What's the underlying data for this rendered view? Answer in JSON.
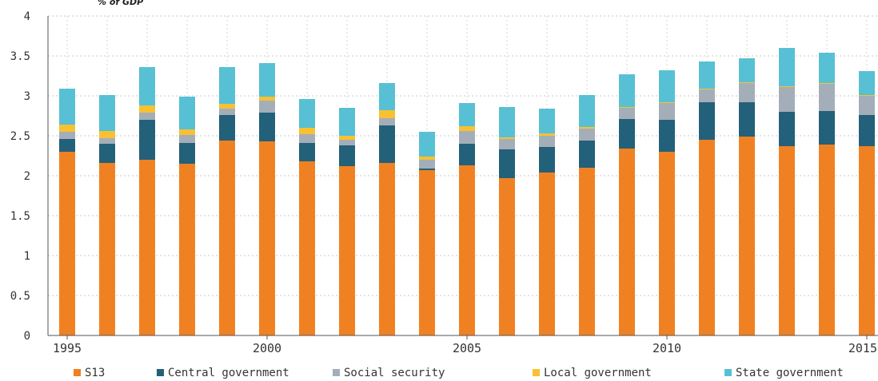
{
  "chart_data": {
    "type": "bar",
    "stacked": true,
    "unit_label": "% of GDP",
    "title": "",
    "xlabel": "",
    "ylabel": "",
    "ylim": [
      0,
      4
    ],
    "yticks": [
      "0",
      "0.5",
      "1",
      "1.5",
      "2",
      "2.5",
      "3",
      "3.5",
      "4"
    ],
    "ytick_values": [
      0,
      0.5,
      1,
      1.5,
      2,
      2.5,
      3,
      3.5,
      4
    ],
    "xticks": [
      "1995",
      "2000",
      "2005",
      "2010",
      "2015"
    ],
    "xtick_years": [
      1995,
      2000,
      2005,
      2010,
      2015
    ],
    "grid": true,
    "legend_position": "bottom",
    "categories": [
      1995,
      1996,
      1997,
      1998,
      1999,
      2000,
      2001,
      2002,
      2003,
      2004,
      2005,
      2006,
      2007,
      2008,
      2009,
      2010,
      2011,
      2012,
      2013,
      2014,
      2015
    ],
    "series": [
      {
        "name": "S13",
        "color": "#f08122",
        "values": [
          2.3,
          2.16,
          2.2,
          2.15,
          2.44,
          2.43,
          2.18,
          2.12,
          2.16,
          2.07,
          2.13,
          1.97,
          2.04,
          2.1,
          2.34,
          2.3,
          2.45,
          2.49,
          2.37,
          2.39,
          2.37
        ]
      },
      {
        "name": "Central government",
        "color": "#23607a",
        "values": [
          0.16,
          0.24,
          0.5,
          0.26,
          0.32,
          0.36,
          0.23,
          0.26,
          0.47,
          0.02,
          0.27,
          0.36,
          0.32,
          0.34,
          0.37,
          0.4,
          0.47,
          0.43,
          0.43,
          0.42,
          0.39
        ]
      },
      {
        "name": "Social security",
        "color": "#a4aeb8",
        "values": [
          0.09,
          0.07,
          0.09,
          0.1,
          0.08,
          0.15,
          0.11,
          0.07,
          0.09,
          0.11,
          0.16,
          0.13,
          0.14,
          0.15,
          0.14,
          0.21,
          0.16,
          0.24,
          0.31,
          0.34,
          0.24
        ]
      },
      {
        "name": "Local government",
        "color": "#f8c132",
        "values": [
          0.09,
          0.09,
          0.09,
          0.07,
          0.06,
          0.05,
          0.08,
          0.05,
          0.1,
          0.04,
          0.06,
          0.02,
          0.03,
          0.02,
          0.01,
          0.01,
          0.01,
          0.01,
          0.01,
          0.01,
          0.01
        ]
      },
      {
        "name": "State government",
        "color": "#57c0d4",
        "values": [
          0.45,
          0.45,
          0.48,
          0.41,
          0.46,
          0.42,
          0.36,
          0.35,
          0.34,
          0.31,
          0.29,
          0.38,
          0.31,
          0.4,
          0.41,
          0.4,
          0.34,
          0.3,
          0.48,
          0.38,
          0.3
        ]
      }
    ]
  }
}
